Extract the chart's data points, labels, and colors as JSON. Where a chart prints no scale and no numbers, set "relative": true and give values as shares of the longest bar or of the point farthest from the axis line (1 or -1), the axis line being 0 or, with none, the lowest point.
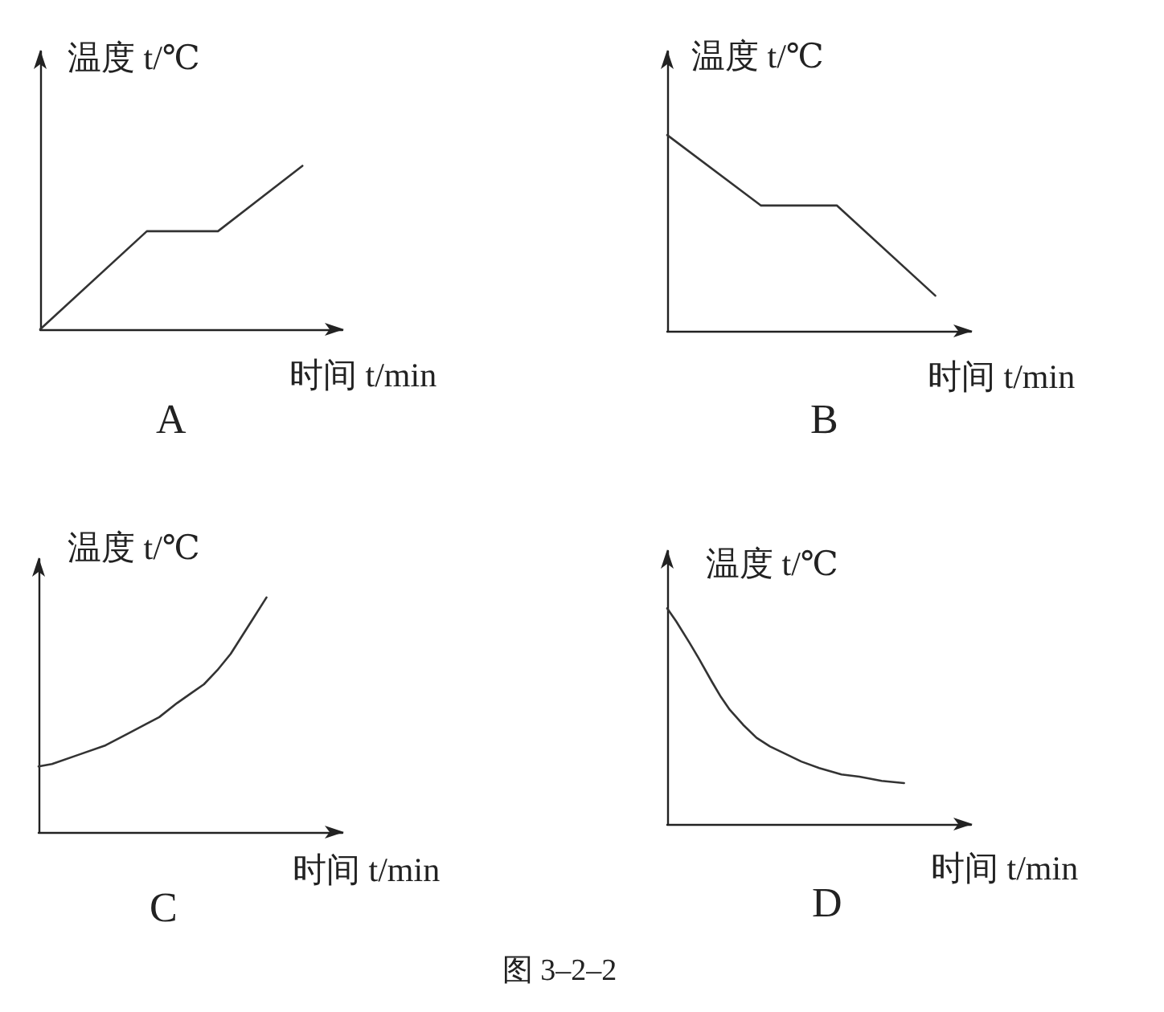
{
  "chart_data": [
    {
      "type": "line",
      "title": "A",
      "xlabel": "时间 t/min",
      "ylabel": "温度 t/℃",
      "relative": true,
      "color": "#333333",
      "categories": [
        null,
        null,
        null,
        null,
        null,
        null,
        null,
        null,
        null,
        null,
        null,
        null,
        null,
        null,
        null,
        null,
        null,
        null,
        null,
        null,
        null,
        null,
        null,
        null,
        null,
        null,
        null,
        null,
        null,
        null,
        null,
        null,
        null,
        null,
        null,
        null,
        null,
        null,
        null,
        null,
        null,
        null,
        null,
        null,
        null,
        null,
        null,
        null,
        null,
        null,
        null,
        null,
        null,
        null,
        null,
        null,
        null,
        null,
        null,
        null,
        null,
        null,
        null,
        null,
        null,
        null,
        null,
        null,
        null
      ],
      "values": [
        0,
        null,
        null,
        null,
        null,
        null,
        null,
        null,
        null,
        null,
        null,
        null,
        null,
        null,
        null,
        null,
        null,
        null,
        null,
        null,
        null,
        null,
        null,
        null,
        0.6,
        null,
        null,
        null,
        null,
        null,
        null,
        null,
        null,
        null,
        null,
        null,
        null,
        null,
        null,
        null,
        0.6,
        null,
        null,
        null,
        null,
        null,
        null,
        null,
        null,
        null,
        null,
        null,
        null,
        null,
        null,
        null,
        null,
        null,
        null,
        1,
        null,
        null,
        null,
        null,
        null,
        null,
        null,
        null,
        null
      ]
    },
    {
      "type": "line",
      "title": "B",
      "xlabel": "时间 t/min",
      "ylabel": "温度 t/℃",
      "relative": true,
      "color": "#333333",
      "categories": [
        null,
        null,
        null,
        null,
        null,
        null,
        null,
        null,
        null,
        null,
        null,
        null,
        null,
        null,
        null,
        null,
        null,
        null,
        null,
        null,
        null,
        null,
        null,
        null,
        null,
        null,
        null,
        null,
        null,
        null,
        null,
        null,
        null,
        null,
        null,
        null,
        null,
        null,
        null,
        null,
        null,
        null,
        null,
        null,
        null,
        null,
        null,
        null,
        null,
        null,
        null,
        null,
        null,
        null,
        null,
        null,
        null,
        null,
        null,
        null,
        null,
        null,
        null,
        null,
        null,
        null,
        null,
        null,
        null
      ],
      "values": [
        1,
        null,
        null,
        null,
        null,
        null,
        null,
        null,
        null,
        null,
        null,
        null,
        null,
        null,
        null,
        null,
        null,
        null,
        null,
        null,
        null,
        0.64,
        null,
        null,
        null,
        null,
        null,
        null,
        null,
        null,
        null,
        null,
        null,
        null,
        null,
        null,
        null,
        null,
        0.64,
        null,
        null,
        null,
        null,
        null,
        null,
        null,
        null,
        null,
        null,
        null,
        null,
        null,
        null,
        null,
        null,
        null,
        null,
        null,
        null,
        null,
        0.18,
        null,
        null,
        null,
        null,
        null,
        null,
        null,
        null
      ]
    },
    {
      "type": "line",
      "title": "C",
      "xlabel": "时间 t/min",
      "ylabel": "温度 t/℃",
      "relative": true,
      "color": "#333333",
      "categories": [
        null,
        null,
        null,
        null,
        null,
        null,
        null,
        null,
        null,
        null,
        null,
        null,
        null,
        null,
        null,
        null,
        null,
        null,
        null,
        null,
        null,
        null,
        null,
        null,
        null,
        null,
        null,
        null,
        null,
        null,
        null,
        null,
        null,
        null,
        null,
        null,
        null,
        null,
        null,
        null,
        null,
        null,
        null,
        null,
        null,
        null,
        null,
        null,
        null,
        null,
        null,
        null,
        null,
        null,
        null,
        null,
        null,
        null,
        null,
        null,
        null,
        null,
        null,
        null,
        null,
        null,
        null,
        null,
        null
      ],
      "values": [
        0.28,
        null,
        null,
        0.29,
        null,
        null,
        null,
        null,
        null,
        0.33,
        null,
        null,
        null,
        null,
        null,
        0.37,
        null,
        null,
        null,
        null,
        0.42,
        null,
        null,
        null,
        0.46,
        null,
        null,
        0.49,
        null,
        null,
        null,
        0.55,
        null,
        null,
        0.59,
        null,
        null,
        0.63,
        null,
        null,
        0.69,
        null,
        null,
        0.76,
        null,
        0.82,
        null,
        null,
        0.91,
        null,
        null,
        1,
        null,
        null,
        null,
        null,
        null,
        null,
        null,
        null,
        null,
        null,
        null,
        null,
        null,
        null,
        null,
        null,
        null
      ]
    },
    {
      "type": "line",
      "title": "D",
      "xlabel": "时间 t/min",
      "ylabel": "温度 t/℃",
      "relative": true,
      "color": "#333333",
      "annotations": [
        "图 3–2–2"
      ],
      "categories": [
        null,
        null,
        null,
        null,
        null,
        null,
        null,
        null,
        null,
        null,
        null,
        null,
        null,
        null,
        null,
        null,
        null,
        null,
        null,
        null,
        null,
        null,
        null,
        null,
        null,
        null,
        null,
        null,
        null,
        null,
        null,
        null,
        null,
        null,
        null,
        null,
        null,
        null,
        null,
        null,
        null,
        null,
        null,
        null,
        null,
        null,
        null,
        null,
        null,
        null,
        null,
        null,
        null,
        null,
        null,
        null,
        null,
        null,
        null,
        null,
        null,
        null,
        null,
        null,
        null,
        null,
        null,
        null,
        null
      ],
      "values": [
        1,
        null,
        0.94,
        null,
        null,
        0.84,
        null,
        0.77,
        null,
        null,
        0.66,
        null,
        0.59,
        null,
        0.53,
        null,
        null,
        0.46,
        null,
        null,
        0.4,
        null,
        null,
        0.36,
        null,
        null,
        0.33,
        null,
        null,
        null,
        0.29,
        null,
        null,
        null,
        0.26,
        null,
        null,
        null,
        null,
        0.23,
        null,
        null,
        null,
        0.22,
        null,
        null,
        null,
        null,
        0.2,
        null,
        null,
        null,
        null,
        0.19,
        null,
        null,
        null,
        null,
        null,
        null,
        null,
        null,
        null,
        null,
        null,
        null,
        null,
        null,
        null
      ]
    }
  ]
}
